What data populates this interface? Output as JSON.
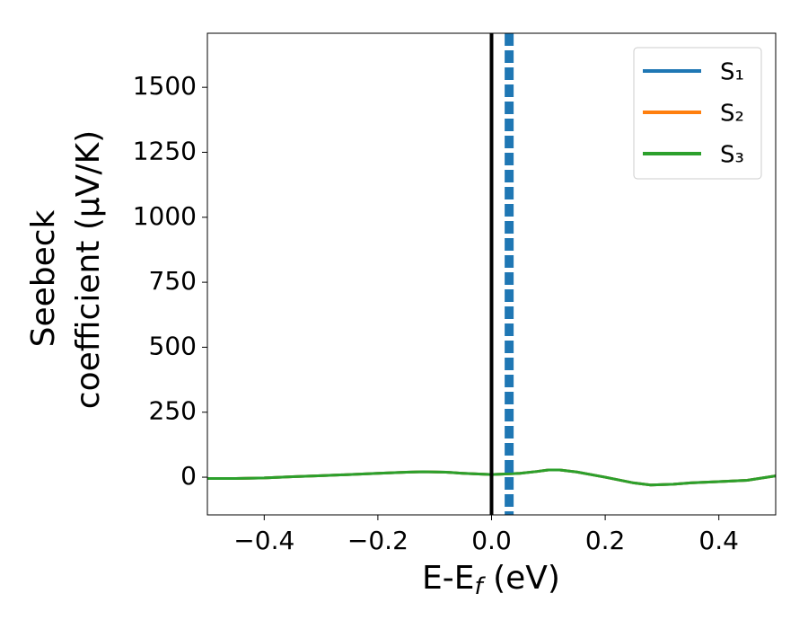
{
  "chart_data": {
    "type": "line",
    "xlabel": [
      "E-E",
      "f",
      " (eV)"
    ],
    "ylabel": [
      "Seebeck",
      "coefficient  (μV/K)"
    ],
    "x": [
      -0.5,
      -0.45,
      -0.4,
      -0.35,
      -0.3,
      -0.25,
      -0.2,
      -0.15,
      -0.12,
      -0.08,
      -0.05,
      0,
      0.05,
      0.08,
      0.1,
      0.12,
      0.15,
      0.2,
      0.25,
      0.28,
      0.32,
      0.35,
      0.4,
      0.45,
      0.5
    ],
    "series": [
      {
        "name": "S₁",
        "color": "#1f77b4",
        "values": [
          -5,
          -5,
          -3,
          2,
          6,
          10,
          15,
          19,
          21,
          19,
          15,
          10,
          15,
          22,
          28,
          28,
          20,
          0,
          -22,
          -30,
          -27,
          -22,
          -17,
          -12,
          5
        ]
      },
      {
        "name": "S₂",
        "color": "#ff7f0e",
        "values": [
          -5,
          -5,
          -3,
          2,
          6,
          10,
          15,
          19,
          21,
          19,
          15,
          10,
          15,
          22,
          28,
          28,
          20,
          0,
          -22,
          -30,
          -27,
          -22,
          -17,
          -12,
          5
        ]
      },
      {
        "name": "S₃",
        "color": "#2ca02c",
        "values": [
          -5,
          -5,
          -3,
          2,
          6,
          10,
          15,
          19,
          21,
          19,
          15,
          10,
          15,
          22,
          28,
          28,
          20,
          0,
          -22,
          -30,
          -27,
          -22,
          -17,
          -12,
          5
        ]
      }
    ],
    "vlines": [
      {
        "x": 0,
        "color": "#000000",
        "style": "solid"
      },
      {
        "x": 0.031,
        "color": "#1f77b4",
        "style": "dashed"
      }
    ],
    "xlim": [
      -0.5,
      0.5
    ],
    "ylim": [
      -145,
      1708
    ],
    "xticks": [
      {
        "value": -0.4,
        "label": "−0.4"
      },
      {
        "value": -0.2,
        "label": "−0.2"
      },
      {
        "value": 0,
        "label": "0.0"
      },
      {
        "value": 0.2,
        "label": "0.2"
      },
      {
        "value": 0.4,
        "label": "0.4"
      }
    ],
    "yticks": [
      0,
      250,
      500,
      750,
      1000,
      1250,
      1500
    ],
    "legend": "upper right"
  }
}
